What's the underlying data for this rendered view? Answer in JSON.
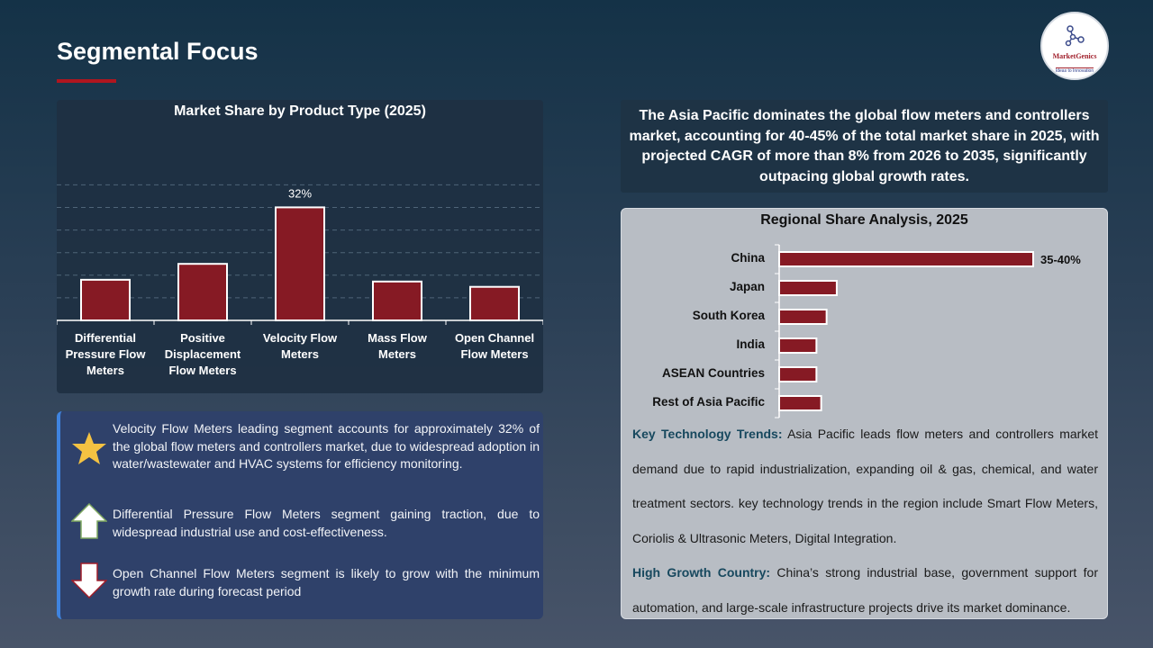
{
  "page": {
    "title": "Segmental Focus"
  },
  "logo": {
    "name": "MarketGenics",
    "tagline": "Ideas to Innovation"
  },
  "colors": {
    "bar": "#861a24",
    "accent": "#b0161f",
    "heading_blue": "#17485e"
  },
  "chart_data": [
    {
      "type": "bar",
      "title": "Market Share by Product Type (2025)",
      "categories": [
        "Differential Pressure Flow Meters",
        "Positive Displacement Flow Meters",
        "Velocity Flow Meters",
        "Mass Flow Meters",
        "Open Channel Flow Meters"
      ],
      "values": [
        11.5,
        16,
        32,
        11,
        9.5
      ],
      "data_labels": [
        "",
        "",
        "32%",
        "",
        ""
      ],
      "unit": "%",
      "ylim": [
        0,
        40
      ],
      "grid": true,
      "xlabel": "",
      "ylabel": ""
    },
    {
      "type": "bar",
      "orientation": "horizontal",
      "title": "Regional Share Analysis, 2025",
      "categories": [
        "China",
        "Japan",
        "South Korea",
        "India",
        "ASEAN Countries",
        "Rest of Asia Pacific"
      ],
      "values": [
        37.5,
        8.5,
        7,
        5.5,
        5.5,
        6.2
      ],
      "data_labels": [
        "35-40%",
        "",
        "",
        "",
        "",
        ""
      ],
      "unit": "%",
      "xlim": [
        0,
        45
      ],
      "grid": false
    }
  ],
  "bullets": [
    {
      "icon": "star-icon",
      "text": "Velocity Flow Meters leading segment accounts for approximately 32% of the global flow meters and controllers market, due to widespread adoption in water/wastewater and HVAC systems for efficiency monitoring."
    },
    {
      "icon": "arrow-up-icon",
      "text": "Differential Pressure Flow Meters segment gaining traction, due to widespread industrial use and cost-effectiveness."
    },
    {
      "icon": "arrow-down-icon",
      "text": "Open Channel Flow Meters segment is likely to grow with the minimum growth rate during forecast period"
    }
  ],
  "summary": "The Asia Pacific dominates the global flow meters and controllers market, accounting for 40-45% of the total market share in 2025, with projected CAGR of more than 8% from 2026 to 2035, significantly outpacing global growth rates.",
  "notes": {
    "tech_label": "Key Technology Trends:",
    "tech_text": " Asia Pacific leads flow meters and controllers market demand due to rapid industrialization, expanding oil & gas, chemical, and water treatment sectors. key technology trends in the region include Smart Flow Meters, Coriolis & Ultrasonic Meters, Digital Integration.",
    "growth_label": "High Growth Country:",
    "growth_text": " China’s strong industrial base, government support for automation, and large-scale infrastructure projects drive its market dominance."
  }
}
